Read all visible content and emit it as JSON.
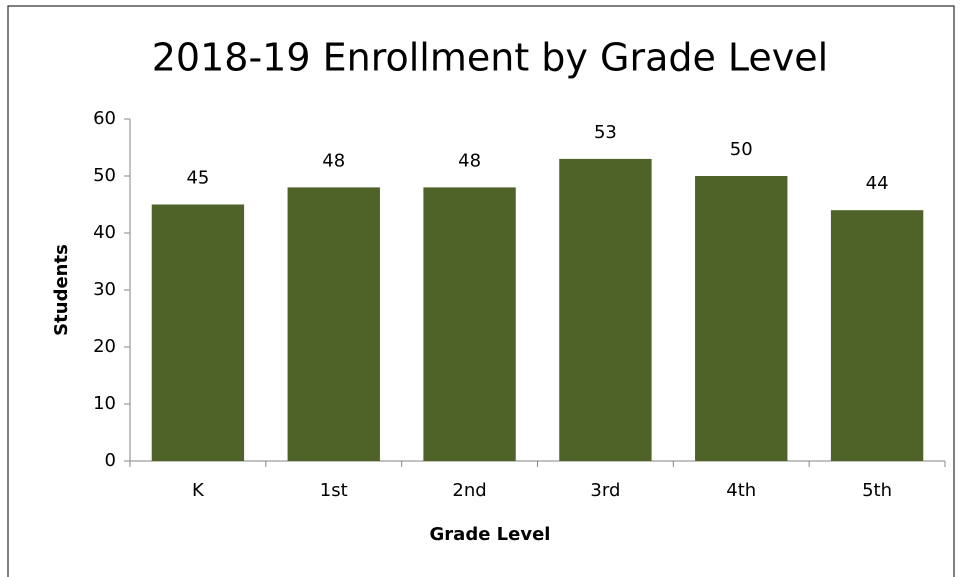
{
  "chart_data": {
    "type": "bar",
    "title": "2018-19 Enrollment by Grade Level",
    "x_label": "Grade Level",
    "y_label": "Students",
    "categories": [
      "K",
      "1st",
      "2nd",
      "3rd",
      "4th",
      "5th"
    ],
    "values": [
      45,
      48,
      48,
      53,
      50,
      44
    ],
    "color": "#4f6228",
    "ylim": [
      0,
      60
    ],
    "yticks": [
      0,
      10,
      20,
      30,
      40,
      50,
      60
    ],
    "grid": false
  }
}
